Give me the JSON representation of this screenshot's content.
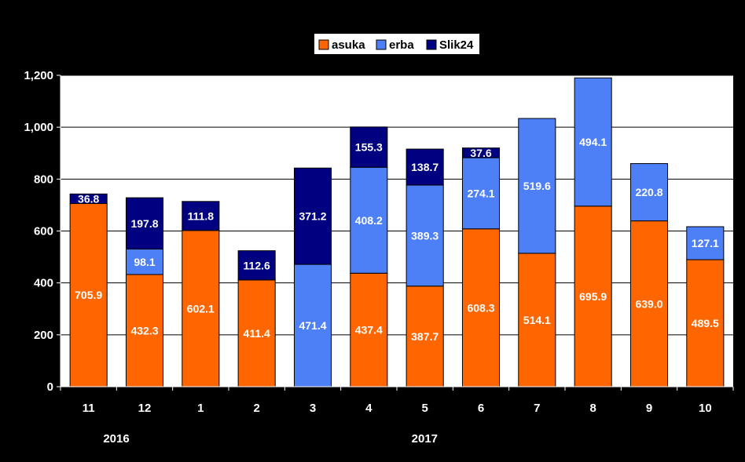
{
  "chart_data": {
    "type": "bar",
    "stacked": true,
    "categories": [
      "11",
      "12",
      "1",
      "2",
      "3",
      "4",
      "5",
      "6",
      "7",
      "8",
      "9",
      "10"
    ],
    "year_labels": [
      {
        "label": "2016",
        "category_index": 1
      },
      {
        "label": "2017",
        "category_index": 6.5
      }
    ],
    "series": [
      {
        "name": "asuka",
        "color": "#ff6600",
        "values": [
          705.9,
          432.3,
          602.1,
          411.4,
          0,
          437.4,
          387.7,
          608.3,
          514.1,
          695.9,
          639.0,
          489.5
        ],
        "labels": [
          "705.9",
          "432.3",
          "602.1",
          "411.4",
          "",
          "437.4",
          "387.7",
          "608.3",
          "514.1",
          "695.9",
          "639.0",
          "489.5"
        ]
      },
      {
        "name": "erba",
        "color": "#4d7ff6",
        "values": [
          0,
          98.1,
          0,
          0,
          471.4,
          408.2,
          389.3,
          274.1,
          519.6,
          494.1,
          220.8,
          127.1
        ],
        "labels": [
          "",
          "98.1",
          "",
          "",
          "471.4",
          "408.2",
          "389.3",
          "274.1",
          "519.6",
          "494.1",
          "220.8",
          "127.1"
        ]
      },
      {
        "name": "Slik24",
        "color": "#000080",
        "values": [
          36.8,
          197.8,
          111.8,
          112.6,
          371.2,
          155.3,
          138.7,
          37.6,
          0,
          0,
          0,
          0
        ],
        "labels": [
          "36.8",
          "197.8",
          "111.8",
          "112.6",
          "371.2",
          "155.3",
          "138.7",
          "37.6",
          "",
          "",
          "",
          ""
        ]
      }
    ],
    "ylim": [
      0,
      1200
    ],
    "yticks": [
      0,
      200,
      400,
      600,
      800,
      1000,
      1200
    ],
    "ytick_labels": [
      "0",
      "200",
      "400",
      "600",
      "800",
      "1,000",
      "1,200"
    ],
    "grid": true,
    "legend_position": "top-center"
  }
}
